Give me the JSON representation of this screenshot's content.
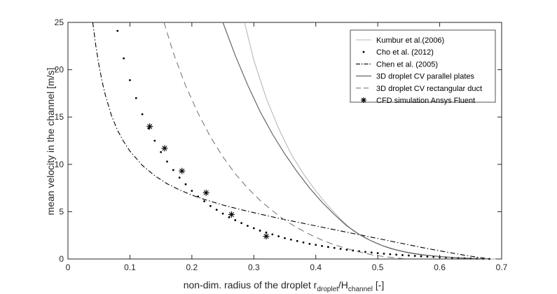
{
  "chart_data": {
    "type": "line",
    "title": "",
    "xlabel": {
      "main": "non-dim. radius of the droplet r",
      "sub1": "droplet",
      "slash": "/H",
      "sub2": "channel",
      "unit": " [-]"
    },
    "ylabel": "mean velocity in the channel [m/s]",
    "xlim": [
      0,
      0.7
    ],
    "ylim": [
      0,
      25
    ],
    "xticks": [
      0,
      0.1,
      0.2,
      0.3,
      0.4,
      0.5,
      0.6,
      0.7
    ],
    "xtick_labels": [
      "0",
      "0.1",
      "0.2",
      "0.3",
      "0.4",
      "0.5",
      "0.6",
      "0.7"
    ],
    "yticks": [
      0,
      5,
      10,
      15,
      20,
      25
    ],
    "ytick_labels": [
      "0",
      "5",
      "10",
      "15",
      "20",
      "25"
    ],
    "grid": false,
    "legend_position": "top-right",
    "series": [
      {
        "name": "Kumbur et al.(2006)",
        "style": "solid",
        "color": "#b8b8b8",
        "x": [
          0.285,
          0.3,
          0.32,
          0.34,
          0.36,
          0.38,
          0.4,
          0.42,
          0.44,
          0.46,
          0.48,
          0.5,
          0.52,
          0.55,
          0.58,
          0.61,
          0.64,
          0.67,
          0.69
        ],
        "y": [
          25,
          21.0,
          17.0,
          13.8,
          11.1,
          9.0,
          7.2,
          5.6,
          4.2,
          3.0,
          2.2,
          1.6,
          1.1,
          0.7,
          0.4,
          0.22,
          0.1,
          0.03,
          0
        ]
      },
      {
        "name": "Cho et al. (2012)",
        "style": "dots",
        "color": "#000000",
        "x": [
          0.08,
          0.09,
          0.1,
          0.11,
          0.12,
          0.13,
          0.14,
          0.15,
          0.16,
          0.17,
          0.18,
          0.19,
          0.2,
          0.21,
          0.22,
          0.23,
          0.24,
          0.25,
          0.26,
          0.27,
          0.28,
          0.29,
          0.3,
          0.31,
          0.32,
          0.33,
          0.34,
          0.35,
          0.36,
          0.37,
          0.38,
          0.39,
          0.4,
          0.41,
          0.42,
          0.43,
          0.44,
          0.45,
          0.46,
          0.47,
          0.48,
          0.49,
          0.5,
          0.51,
          0.52,
          0.53,
          0.54,
          0.55,
          0.56,
          0.57,
          0.58,
          0.59,
          0.6,
          0.61,
          0.62,
          0.63,
          0.64,
          0.65,
          0.66,
          0.67,
          0.68
        ],
        "y": [
          24.1,
          21.2,
          18.9,
          17.0,
          15.3,
          13.8,
          12.5,
          11.3,
          10.3,
          9.4,
          8.6,
          7.9,
          7.2,
          6.6,
          6.1,
          5.6,
          5.2,
          4.8,
          4.4,
          4.1,
          3.8,
          3.5,
          3.25,
          3.0,
          2.8,
          2.6,
          2.4,
          2.2,
          2.05,
          1.9,
          1.75,
          1.6,
          1.5,
          1.38,
          1.27,
          1.17,
          1.07,
          0.98,
          0.9,
          0.82,
          0.75,
          0.68,
          0.62,
          0.56,
          0.51,
          0.46,
          0.41,
          0.37,
          0.33,
          0.29,
          0.25,
          0.22,
          0.19,
          0.16,
          0.13,
          0.1,
          0.08,
          0.06,
          0.04,
          0.02,
          0.01
        ]
      },
      {
        "name": "Chen et al. (2005)",
        "style": "dashdot",
        "color": "#000000",
        "x": [
          0.04,
          0.045,
          0.05,
          0.055,
          0.06,
          0.07,
          0.08,
          0.09,
          0.1,
          0.12,
          0.14,
          0.16,
          0.18,
          0.2,
          0.22,
          0.25,
          0.28,
          0.31,
          0.34,
          0.37,
          0.4,
          0.43,
          0.46,
          0.49,
          0.52,
          0.55,
          0.58,
          0.61,
          0.64,
          0.66,
          0.67,
          0.68
        ],
        "y": [
          25,
          22.5,
          20.5,
          18.8,
          17.4,
          15.2,
          13.6,
          12.4,
          11.4,
          9.9,
          8.8,
          7.95,
          7.3,
          6.75,
          6.3,
          5.7,
          5.2,
          4.75,
          4.3,
          3.9,
          3.5,
          3.1,
          2.7,
          2.3,
          1.9,
          1.5,
          1.1,
          0.75,
          0.4,
          0.2,
          0.1,
          0
        ]
      },
      {
        "name": "3D droplet CV parallel plates",
        "style": "solid",
        "color": "#5a5a5a",
        "x": [
          0.25,
          0.27,
          0.29,
          0.31,
          0.33,
          0.35,
          0.37,
          0.39,
          0.41,
          0.43,
          0.45,
          0.47,
          0.49,
          0.51,
          0.53,
          0.55,
          0.57,
          0.6,
          0.63,
          0.66,
          0.68
        ],
        "y": [
          25,
          21.5,
          18.4,
          15.6,
          13.2,
          11.1,
          9.2,
          7.5,
          6.0,
          4.7,
          3.5,
          2.6,
          1.9,
          1.35,
          0.95,
          0.65,
          0.45,
          0.25,
          0.12,
          0.04,
          0
        ]
      },
      {
        "name": "3D droplet CV rectangular duct",
        "style": "dashed",
        "color": "#7a7a7a",
        "x": [
          0.155,
          0.17,
          0.19,
          0.21,
          0.23,
          0.25,
          0.27,
          0.29,
          0.31,
          0.33,
          0.35,
          0.37,
          0.39,
          0.41,
          0.43,
          0.45,
          0.47,
          0.49,
          0.51,
          0.53,
          0.55
        ],
        "y": [
          25,
          21.8,
          18.3,
          15.4,
          12.9,
          10.8,
          9.0,
          7.5,
          6.2,
          5.1,
          4.1,
          3.3,
          2.6,
          2.0,
          1.5,
          1.1,
          0.75,
          0.45,
          0.25,
          0.1,
          0
        ]
      },
      {
        "name": "CFD simulation Ansys Fluent",
        "style": "asterisk",
        "color": "#000000",
        "x": [
          0.132,
          0.156,
          0.184,
          0.223,
          0.264,
          0.32
        ],
        "y": [
          14.0,
          11.7,
          9.3,
          7.0,
          4.7,
          2.4
        ]
      }
    ]
  }
}
